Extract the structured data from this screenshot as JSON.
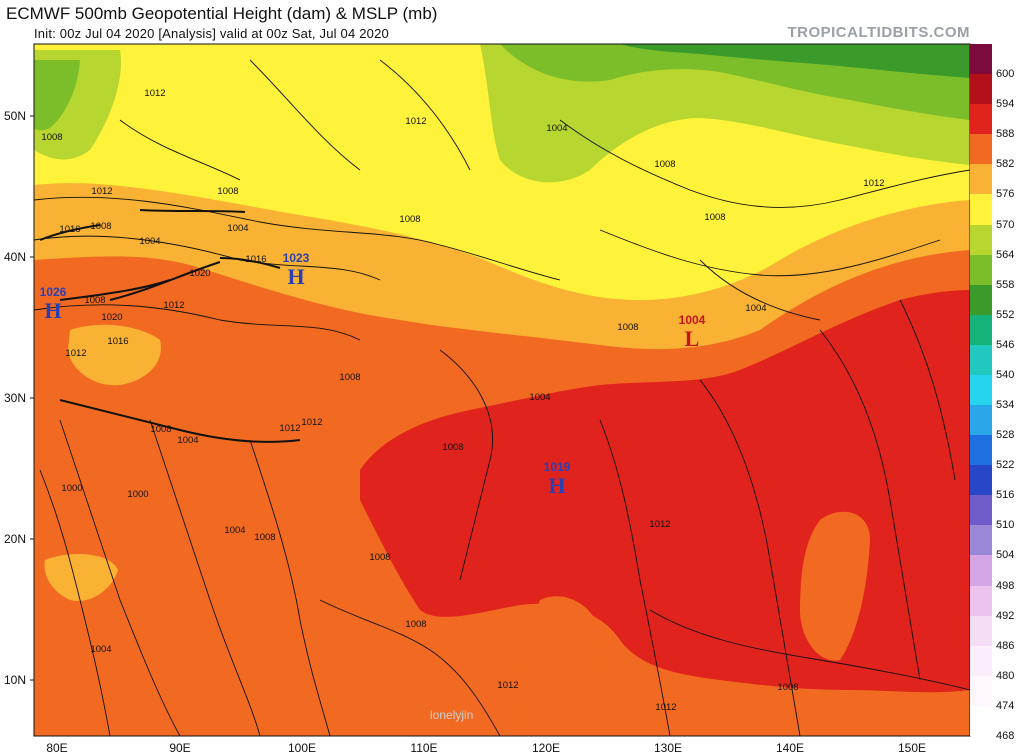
{
  "header": {
    "title": "ECMWF 500mb Geopotential Height (dam) & MSLP (mb)",
    "subtitle": "Init: 00z Jul 04 2020   [Analysis]   valid at 00z Sat, Jul 04 2020",
    "brand": "TROPICALTIDBITS.COM"
  },
  "axes": {
    "lat_labels": [
      "50N",
      "40N",
      "30N",
      "20N",
      "10N"
    ],
    "lon_labels": [
      "80E",
      "90E",
      "100E",
      "110E",
      "120E",
      "130E",
      "140E",
      "150E"
    ]
  },
  "colorbar": {
    "labels": [
      "600",
      "594",
      "588",
      "582",
      "576",
      "570",
      "564",
      "558",
      "552",
      "546",
      "540",
      "534",
      "528",
      "522",
      "516",
      "510",
      "504",
      "498",
      "492",
      "486",
      "480",
      "474",
      "468"
    ],
    "colors": [
      "#7a0b3c",
      "#b3101a",
      "#e0231c",
      "#f26a21",
      "#f9b233",
      "#fff23a",
      "#b7d62f",
      "#7cbd2a",
      "#3a9a2a",
      "#15b27a",
      "#21c8c0",
      "#27d4f0",
      "#2aa7e8",
      "#1f6fe0",
      "#2747c8",
      "#6f5cc8",
      "#9b87d8",
      "#d5a6e6",
      "#ecc2ee",
      "#f4dcf4",
      "#fbeefb",
      "#fdf6fd",
      "#ffffff"
    ]
  },
  "map": {
    "colors": {
      "h588": "#e0231c",
      "h582": "#f26a21",
      "h576": "#f9b233",
      "h570": "#fff23a",
      "h564": "#b7d62f",
      "h558": "#7cbd2a",
      "h552": "#3a9a2a",
      "h_label_blue": "#2b3fb5",
      "l_label_red": "#c0151b"
    },
    "isobar_labels": [
      "1012",
      "1008",
      "1012",
      "1008",
      "1004",
      "1016",
      "1008",
      "1012",
      "1004",
      "1008",
      "1008",
      "1012",
      "1008",
      "1016",
      "1020",
      "1020",
      "1016",
      "1012",
      "1008",
      "1008",
      "1004",
      "1012",
      "1004",
      "1008",
      "1000",
      "1000",
      "1004",
      "1008",
      "1008",
      "1004",
      "1012",
      "1008",
      "1012",
      "1012",
      "1012",
      "1012",
      "1004",
      "1008",
      "1008",
      "1004",
      "1008"
    ],
    "pressure_centers": [
      {
        "type": "H",
        "value": "1026",
        "color": "blue"
      },
      {
        "type": "H",
        "value": "1023",
        "color": "blue"
      },
      {
        "type": "H",
        "value": "1019",
        "color": "blue"
      },
      {
        "type": "L",
        "value": "1004",
        "color": "red"
      }
    ]
  },
  "watermark": "lonelyjin"
}
